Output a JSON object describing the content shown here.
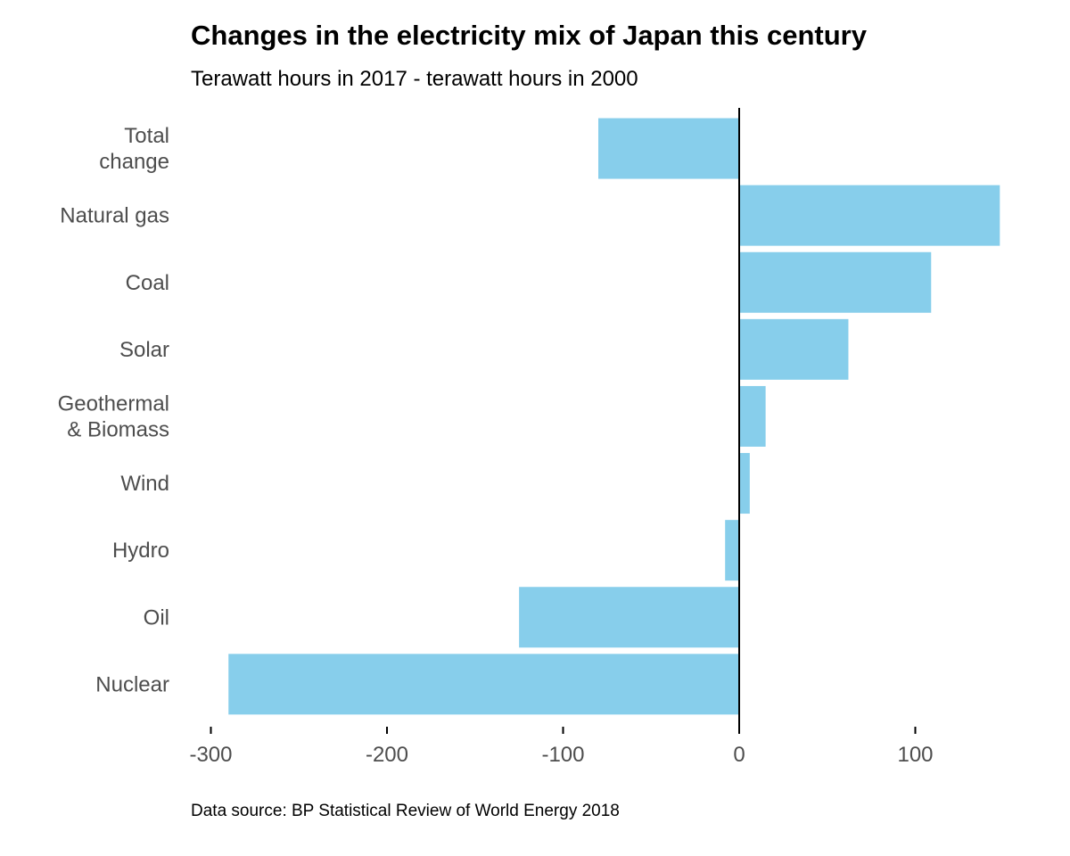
{
  "chart_data": {
    "type": "bar",
    "orientation": "horizontal",
    "title": "Changes in the electricity mix of Japan this century",
    "subtitle": "Terawatt hours in 2017 - terawatt hours in 2000",
    "caption": "Data source: BP Statistical Review of World Energy 2018",
    "xlabel": "",
    "ylabel": "",
    "categories": [
      [
        "Total",
        "change"
      ],
      [
        "Natural gas"
      ],
      [
        "Coal"
      ],
      [
        "Solar"
      ],
      [
        "Geothermal",
        "& Biomass"
      ],
      [
        "Wind"
      ],
      [
        "Hydro"
      ],
      [
        "Oil"
      ],
      [
        "Nuclear"
      ]
    ],
    "values": [
      -80,
      148,
      109,
      62,
      15,
      6,
      -8,
      -125,
      -290
    ],
    "xlim": [
      -300,
      150
    ],
    "xticks": [
      -300,
      -200,
      -100,
      0,
      100
    ],
    "xtick_labels": [
      "-300",
      "-200",
      "-100",
      "0",
      "100"
    ],
    "bar_color": "#87ceeb",
    "zero_line_color": "#000000",
    "grid": false
  }
}
